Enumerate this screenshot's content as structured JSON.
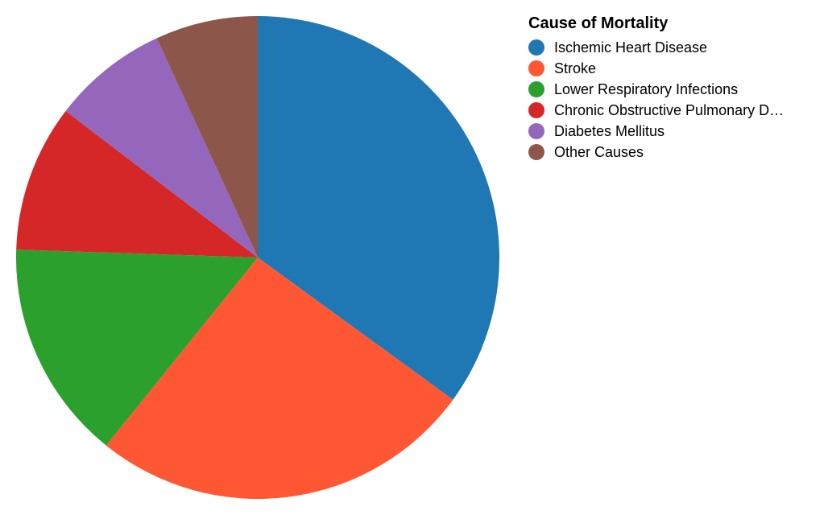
{
  "chart_data": {
    "type": "pie",
    "legend_title": "Cause of Mortality",
    "legend_position": "top-right",
    "categories": [
      "Ischemic Heart Disease",
      "Stroke",
      "Lower Respiratory Infections",
      "Chronic Obstructive Pulmonary Disease",
      "Diabetes Mellitus",
      "Other Causes"
    ],
    "legend_labels": [
      "Ischemic Heart Disease",
      "Stroke",
      "Lower Respiratory Infections",
      "Chronic Obstructive Pulmonary D…",
      "Diabetes Mellitus",
      "Other Causes"
    ],
    "values": [
      35.2,
      25.9,
      14.8,
      9.9,
      7.8,
      6.9
    ],
    "colors": [
      "#1f77b4",
      "#ff5733",
      "#2ca02c",
      "#d62728",
      "#9467bd",
      "#8c564b"
    ]
  }
}
